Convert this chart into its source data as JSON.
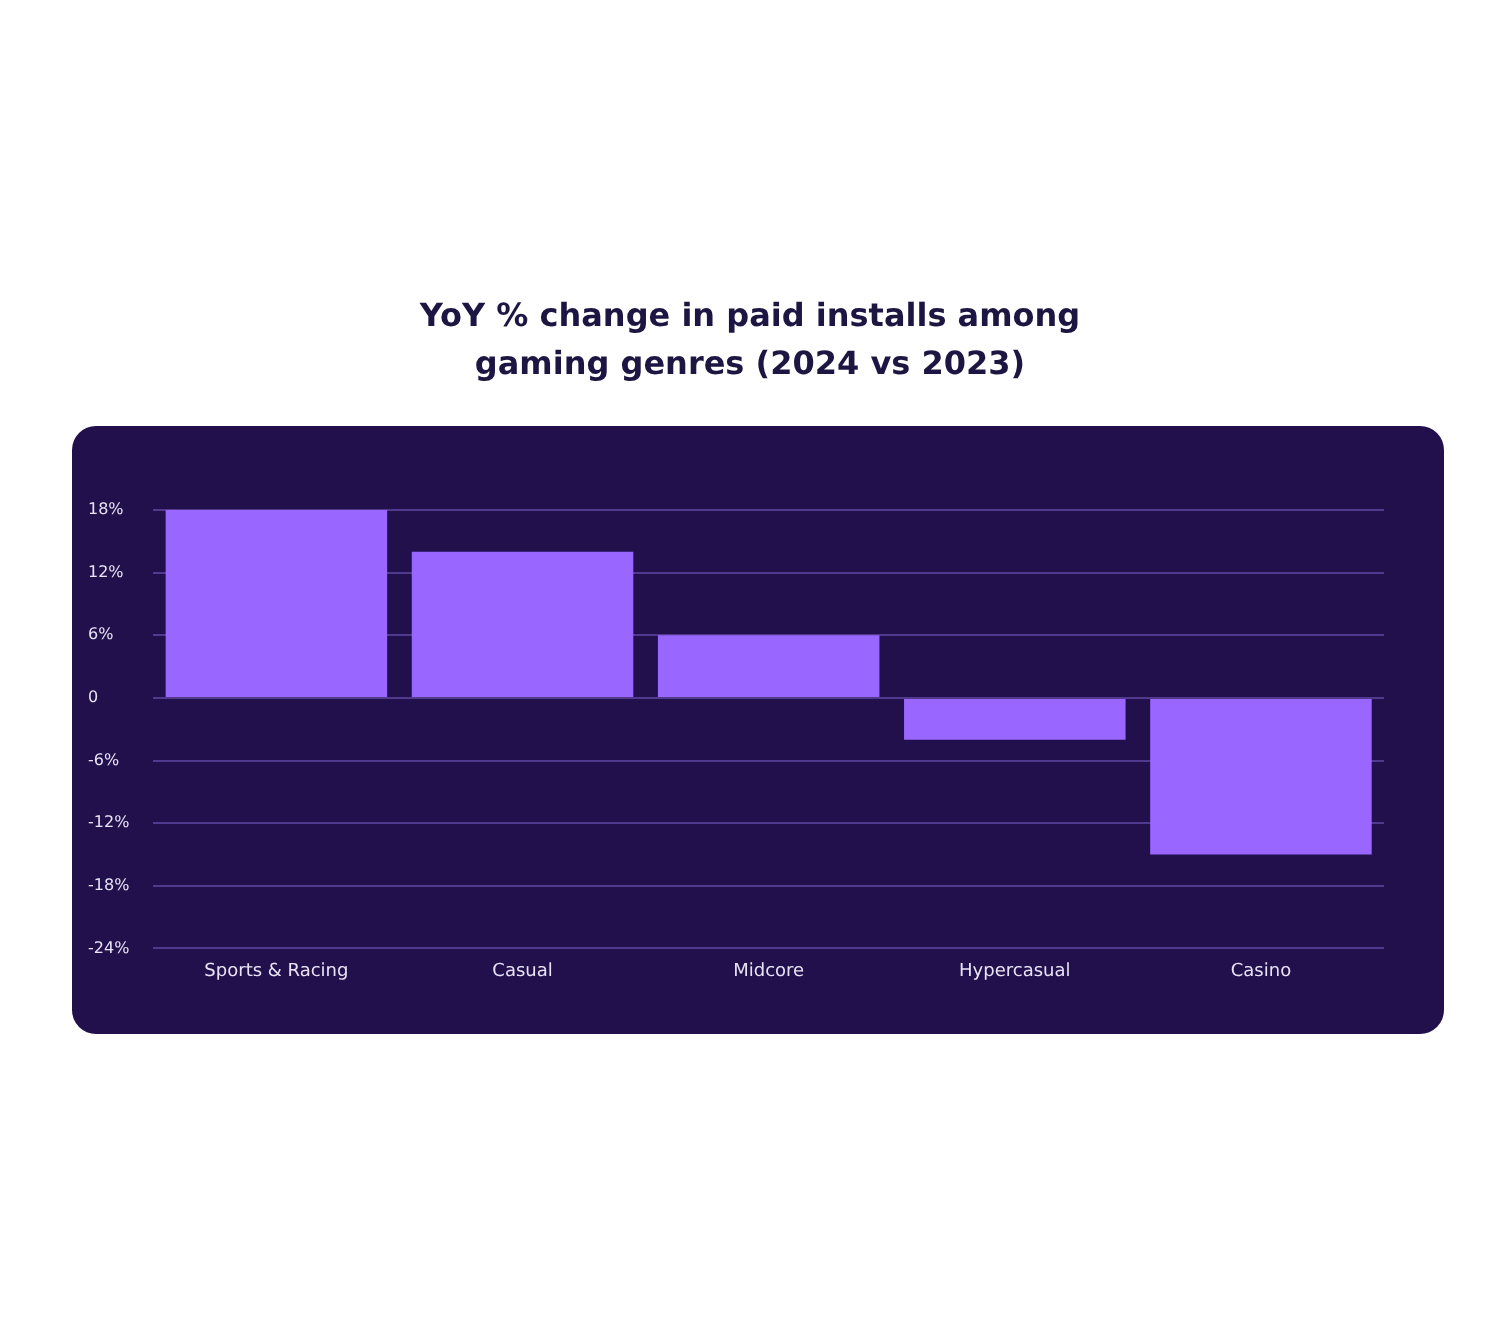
{
  "chart_data": {
    "type": "bar",
    "title": "YoY % change in paid installs among gaming genres (2024 vs 2023)",
    "categories": [
      "Sports & Racing",
      "Casual",
      "Midcore",
      "Hypercasual",
      "Casino"
    ],
    "values": [
      18,
      14,
      6,
      -4,
      -15
    ],
    "color": "#9966ff",
    "ylim": [
      -24,
      18
    ],
    "yticks": [
      {
        "value": -24,
        "label": "-24%"
      },
      {
        "value": -18,
        "label": "-18%"
      },
      {
        "value": -12,
        "label": "-12%"
      },
      {
        "value": -6,
        "label": "-6%"
      },
      0,
      {
        "value": 6,
        "label": "6%"
      },
      {
        "value": 12,
        "label": "12%"
      },
      {
        "value": 18,
        "label": "18%"
      }
    ],
    "grid": "y"
  }
}
